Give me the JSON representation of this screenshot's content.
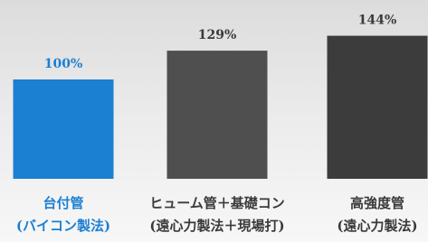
{
  "chart_data": {
    "type": "bar",
    "categories": [
      [
        "台付管",
        "(バイコン製法)"
      ],
      [
        "ヒューム管＋基礎コン",
        "(遠心力製法＋現場打)"
      ],
      [
        "高強度管",
        "(遠心力製法)"
      ]
    ],
    "values": [
      100,
      129,
      144
    ],
    "value_labels": [
      "100%",
      "129%",
      "144%"
    ],
    "colors": [
      "#1b7fd2",
      "#4f4f4f",
      "#3c3c3c"
    ],
    "label_colors": [
      "#1b7fd2",
      "#3a3a3a",
      "#3a3a3a"
    ]
  }
}
